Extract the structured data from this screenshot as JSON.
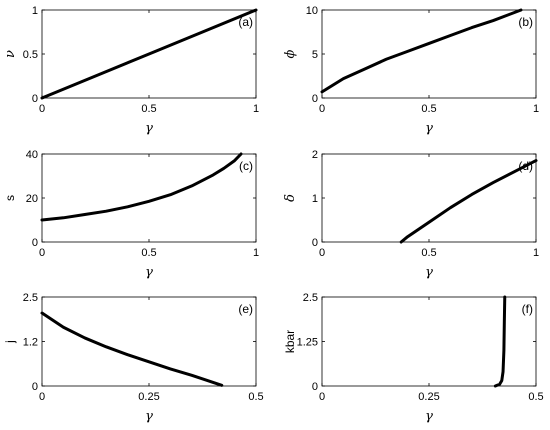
{
  "chart_data": [
    {
      "panel": "(a)",
      "type": "line",
      "xlabel": "γ",
      "ylabel": "ν",
      "xlim": [
        0,
        1
      ],
      "ylim": [
        0,
        1
      ],
      "xticks": [
        "0",
        "0.5",
        "1"
      ],
      "yticks": [
        "0",
        "0.5",
        "1"
      ],
      "series": [
        {
          "x": [
            0,
            0.25,
            0.5,
            0.75,
            1.0
          ],
          "y": [
            0,
            0.25,
            0.5,
            0.75,
            1.0
          ]
        }
      ]
    },
    {
      "panel": "(b)",
      "type": "line",
      "xlabel": "γ",
      "ylabel": "ϕ",
      "xlim": [
        0,
        1
      ],
      "ylim": [
        0,
        10
      ],
      "xticks": [
        "0",
        "0.5",
        "1"
      ],
      "yticks": [
        "0",
        "5",
        "10"
      ],
      "series": [
        {
          "x": [
            0,
            0.1,
            0.2,
            0.3,
            0.4,
            0.5,
            0.6,
            0.7,
            0.8,
            0.93
          ],
          "y": [
            0.7,
            2.2,
            3.3,
            4.4,
            5.3,
            6.2,
            7.1,
            8.0,
            8.8,
            10.0
          ]
        }
      ]
    },
    {
      "panel": "(c)",
      "type": "line",
      "xlabel": "γ",
      "ylabel": "s",
      "xlim": [
        0,
        1
      ],
      "ylim": [
        0,
        40
      ],
      "xticks": [
        "0",
        "0.5",
        "1"
      ],
      "yticks": [
        "0",
        "20",
        "40"
      ],
      "series": [
        {
          "x": [
            0,
            0.1,
            0.2,
            0.3,
            0.4,
            0.5,
            0.6,
            0.7,
            0.8,
            0.85,
            0.9,
            0.93
          ],
          "y": [
            10,
            11,
            12.5,
            14,
            16,
            18.5,
            21.5,
            25.5,
            30.5,
            33.5,
            37,
            40
          ]
        }
      ]
    },
    {
      "panel": "(d)",
      "type": "line",
      "xlabel": "γ",
      "ylabel": "δ",
      "xlim": [
        0,
        1
      ],
      "ylim": [
        0,
        2
      ],
      "xticks": [
        "0",
        "0.5",
        "1"
      ],
      "yticks": [
        "0",
        "1",
        "2"
      ],
      "series": [
        {
          "x": [
            0.37,
            0.4,
            0.5,
            0.6,
            0.7,
            0.8,
            0.9,
            1.0
          ],
          "y": [
            0,
            0.12,
            0.45,
            0.78,
            1.08,
            1.35,
            1.6,
            1.85
          ]
        }
      ]
    },
    {
      "panel": "(e)",
      "type": "line",
      "xlabel": "γ",
      "ylabel": "j",
      "xlim": [
        0,
        0.5
      ],
      "ylim": [
        0,
        2.5
      ],
      "xticks": [
        "0",
        "0.25",
        "0.5"
      ],
      "yticks": [
        "0",
        "1.2",
        "2.5"
      ],
      "series": [
        {
          "x": [
            0,
            0.05,
            0.1,
            0.15,
            0.2,
            0.25,
            0.3,
            0.35,
            0.42
          ],
          "y": [
            2.05,
            1.65,
            1.35,
            1.1,
            0.88,
            0.68,
            0.48,
            0.3,
            0.02
          ]
        }
      ]
    },
    {
      "panel": "(f)",
      "type": "line",
      "xlabel": "γ",
      "ylabel": "kbar",
      "xlim": [
        0,
        0.5
      ],
      "ylim": [
        0,
        2.5
      ],
      "xticks": [
        "0",
        "0.25",
        "0.5"
      ],
      "yticks": [
        "0",
        "1.25",
        "2.5"
      ],
      "series": [
        {
          "x": [
            0.405,
            0.415,
            0.42,
            0.423,
            0.425,
            0.426,
            0.427
          ],
          "y": [
            0,
            0.05,
            0.15,
            0.4,
            1.0,
            1.8,
            2.5
          ]
        }
      ]
    }
  ]
}
